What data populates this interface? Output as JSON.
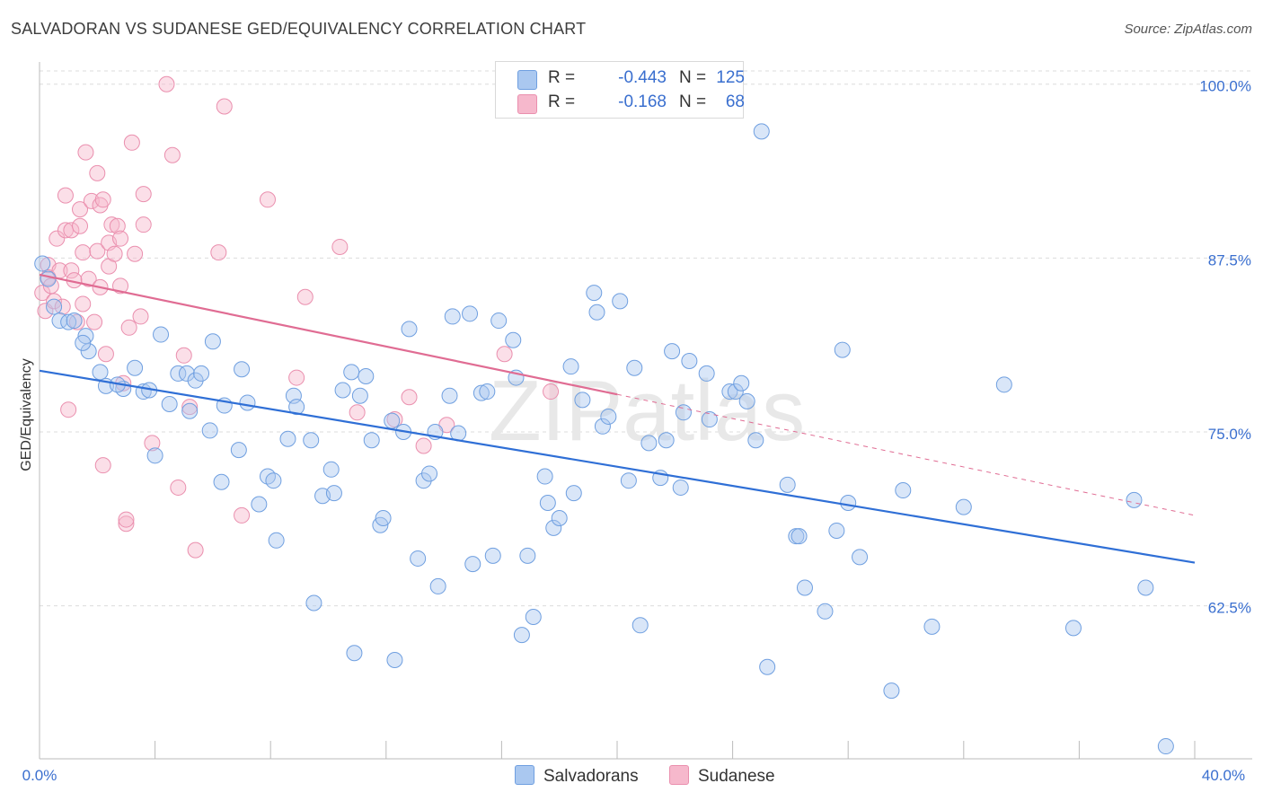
{
  "header": {
    "title": "SALVADORAN VS SUDANESE GED/EQUIVALENCY CORRELATION CHART",
    "source": "Source: ZipAtlas.com"
  },
  "legend": {
    "rows": [
      {
        "r_label": "R =",
        "r_value": "-0.443",
        "n_label": "N =",
        "n_value": "125",
        "color": "#a9c6f0"
      },
      {
        "r_label": "R =",
        "r_value": "-0.168",
        "n_label": "N =",
        "n_value": "68",
        "color": "#f5b3c8"
      }
    ],
    "bottom": [
      "Salvadorans",
      "Sudanese"
    ]
  },
  "colors": {
    "blue_fill": "#aac8f0",
    "blue_stroke": "#6f9fe0",
    "blue_line": "#2f6fd6",
    "pink_fill": "#f6b8cc",
    "pink_stroke": "#ea8fae",
    "pink_line": "#e06c93",
    "tick_text": "#3a6fcf"
  },
  "chart_data": {
    "type": "scatter",
    "title": "SALVADORAN VS SUDANESE GED/EQUIVALENCY CORRELATION CHART",
    "xlabel": "",
    "ylabel": "GED/Equivalency",
    "xlim": [
      0,
      40
    ],
    "ylim": [
      51.5,
      102.5
    ],
    "x_tick_labels": [
      "0.0%",
      "40.0%"
    ],
    "y_ticks": [
      62.5,
      75.0,
      87.5,
      100.0
    ],
    "y_tick_labels": [
      "62.5%",
      "75.0%",
      "87.5%",
      "100.0%"
    ],
    "grid": true,
    "legend_position": "top-center",
    "watermark": "ZIPatlas",
    "series": [
      {
        "name": "Salvadorans",
        "color": "#aac8f0",
        "trend": {
          "x": [
            0,
            40
          ],
          "y": [
            79.4,
            65.6
          ]
        },
        "points": [
          [
            0.1,
            87.1
          ],
          [
            0.3,
            86.0
          ],
          [
            0.5,
            84.0
          ],
          [
            0.7,
            83.0
          ],
          [
            1.0,
            82.9
          ],
          [
            1.2,
            83.0
          ],
          [
            1.6,
            81.9
          ],
          [
            1.7,
            80.8
          ],
          [
            1.5,
            81.4
          ],
          [
            2.1,
            79.3
          ],
          [
            2.3,
            78.3
          ],
          [
            2.9,
            78.1
          ],
          [
            2.7,
            78.4
          ],
          [
            3.3,
            79.6
          ],
          [
            3.6,
            77.9
          ],
          [
            3.8,
            78.0
          ],
          [
            4.0,
            73.3
          ],
          [
            4.2,
            82.0
          ],
          [
            4.5,
            77.0
          ],
          [
            4.8,
            79.2
          ],
          [
            5.1,
            79.2
          ],
          [
            5.2,
            76.5
          ],
          [
            5.4,
            78.7
          ],
          [
            5.6,
            79.2
          ],
          [
            5.9,
            75.1
          ],
          [
            6.0,
            81.5
          ],
          [
            6.3,
            71.4
          ],
          [
            6.4,
            76.9
          ],
          [
            6.9,
            73.7
          ],
          [
            7.0,
            79.5
          ],
          [
            7.2,
            77.1
          ],
          [
            7.6,
            69.8
          ],
          [
            7.9,
            71.8
          ],
          [
            8.1,
            71.5
          ],
          [
            8.2,
            67.2
          ],
          [
            8.6,
            74.5
          ],
          [
            8.8,
            77.6
          ],
          [
            8.9,
            76.8
          ],
          [
            9.4,
            74.4
          ],
          [
            9.5,
            62.7
          ],
          [
            9.8,
            70.4
          ],
          [
            10.1,
            72.3
          ],
          [
            10.2,
            70.6
          ],
          [
            10.5,
            78.0
          ],
          [
            10.8,
            79.3
          ],
          [
            10.9,
            59.1
          ],
          [
            11.1,
            77.6
          ],
          [
            11.3,
            79.0
          ],
          [
            11.5,
            74.4
          ],
          [
            11.8,
            68.3
          ],
          [
            11.9,
            68.8
          ],
          [
            12.2,
            75.8
          ],
          [
            12.3,
            58.6
          ],
          [
            12.6,
            75.0
          ],
          [
            12.8,
            82.4
          ],
          [
            13.1,
            65.9
          ],
          [
            13.3,
            71.5
          ],
          [
            13.5,
            72.0
          ],
          [
            13.7,
            75.0
          ],
          [
            13.8,
            63.9
          ],
          [
            14.2,
            77.6
          ],
          [
            14.3,
            83.3
          ],
          [
            14.5,
            74.9
          ],
          [
            14.9,
            83.5
          ],
          [
            15.0,
            65.5
          ],
          [
            15.3,
            77.8
          ],
          [
            15.5,
            77.9
          ],
          [
            15.7,
            66.1
          ],
          [
            15.9,
            83.0
          ],
          [
            16.4,
            81.6
          ],
          [
            16.5,
            78.9
          ],
          [
            16.7,
            60.4
          ],
          [
            16.9,
            66.1
          ],
          [
            17.1,
            61.7
          ],
          [
            17.5,
            71.8
          ],
          [
            17.6,
            69.9
          ],
          [
            17.8,
            68.1
          ],
          [
            18.0,
            68.8
          ],
          [
            18.4,
            79.7
          ],
          [
            18.5,
            70.6
          ],
          [
            18.8,
            77.3
          ],
          [
            19.2,
            85.0
          ],
          [
            19.3,
            83.6
          ],
          [
            19.5,
            75.4
          ],
          [
            19.7,
            76.1
          ],
          [
            20.1,
            84.4
          ],
          [
            20.4,
            71.5
          ],
          [
            20.6,
            79.6
          ],
          [
            20.8,
            61.1
          ],
          [
            21.1,
            74.2
          ],
          [
            21.5,
            71.7
          ],
          [
            21.7,
            74.4
          ],
          [
            21.9,
            80.8
          ],
          [
            22.2,
            71.0
          ],
          [
            22.3,
            76.4
          ],
          [
            22.5,
            80.1
          ],
          [
            23.1,
            79.2
          ],
          [
            23.2,
            75.9
          ],
          [
            23.9,
            77.9
          ],
          [
            24.1,
            77.9
          ],
          [
            24.3,
            78.5
          ],
          [
            24.5,
            77.2
          ],
          [
            24.8,
            74.4
          ],
          [
            25.0,
            96.6
          ],
          [
            25.2,
            58.1
          ],
          [
            25.9,
            71.2
          ],
          [
            26.2,
            67.5
          ],
          [
            26.3,
            67.5
          ],
          [
            26.5,
            63.8
          ],
          [
            27.2,
            62.1
          ],
          [
            27.6,
            67.9
          ],
          [
            27.8,
            80.9
          ],
          [
            28.0,
            69.9
          ],
          [
            28.4,
            66.0
          ],
          [
            29.5,
            56.4
          ],
          [
            29.9,
            70.8
          ],
          [
            30.9,
            61.0
          ],
          [
            32.0,
            69.6
          ],
          [
            33.4,
            78.4
          ],
          [
            35.8,
            60.9
          ],
          [
            37.9,
            70.1
          ],
          [
            38.3,
            63.8
          ],
          [
            39.0,
            52.4
          ]
        ]
      },
      {
        "name": "Sudanese",
        "color": "#f6b8cc",
        "trend": {
          "x": [
            0,
            20
          ],
          "y": [
            86.3,
            77.7
          ]
        },
        "trend_extension": {
          "x": [
            20,
            40
          ],
          "y": [
            77.7,
            69.0
          ]
        },
        "points": [
          [
            0.1,
            85.0
          ],
          [
            0.2,
            83.7
          ],
          [
            0.3,
            87.0
          ],
          [
            0.3,
            86.1
          ],
          [
            0.4,
            85.5
          ],
          [
            0.5,
            84.4
          ],
          [
            0.6,
            88.9
          ],
          [
            0.7,
            86.6
          ],
          [
            0.8,
            84.0
          ],
          [
            0.9,
            92.0
          ],
          [
            0.9,
            89.5
          ],
          [
            1.0,
            76.6
          ],
          [
            1.1,
            89.5
          ],
          [
            1.1,
            86.6
          ],
          [
            1.2,
            85.9
          ],
          [
            1.3,
            82.9
          ],
          [
            1.4,
            89.8
          ],
          [
            1.4,
            91.0
          ],
          [
            1.5,
            84.2
          ],
          [
            1.5,
            87.9
          ],
          [
            1.6,
            95.1
          ],
          [
            1.7,
            86.0
          ],
          [
            1.8,
            91.6
          ],
          [
            1.9,
            82.9
          ],
          [
            2.0,
            88.0
          ],
          [
            2.0,
            93.6
          ],
          [
            2.1,
            91.3
          ],
          [
            2.1,
            85.4
          ],
          [
            2.2,
            91.7
          ],
          [
            2.2,
            72.6
          ],
          [
            2.3,
            80.6
          ],
          [
            2.4,
            86.9
          ],
          [
            2.4,
            88.6
          ],
          [
            2.5,
            89.9
          ],
          [
            2.6,
            87.8
          ],
          [
            2.7,
            89.8
          ],
          [
            2.8,
            88.9
          ],
          [
            2.8,
            85.5
          ],
          [
            2.9,
            78.5
          ],
          [
            3.0,
            68.4
          ],
          [
            3.0,
            68.7
          ],
          [
            3.1,
            82.5
          ],
          [
            3.2,
            95.8
          ],
          [
            3.3,
            87.8
          ],
          [
            3.5,
            83.3
          ],
          [
            3.6,
            92.1
          ],
          [
            3.6,
            89.9
          ],
          [
            3.9,
            74.2
          ],
          [
            4.4,
            100.0
          ],
          [
            4.6,
            94.9
          ],
          [
            4.8,
            71.0
          ],
          [
            5.2,
            76.8
          ],
          [
            5.4,
            66.5
          ],
          [
            6.2,
            87.9
          ],
          [
            6.4,
            98.4
          ],
          [
            7.0,
            69.0
          ],
          [
            7.9,
            91.7
          ],
          [
            8.9,
            78.9
          ],
          [
            9.2,
            84.7
          ],
          [
            10.4,
            88.3
          ],
          [
            11.0,
            76.4
          ],
          [
            12.3,
            75.9
          ],
          [
            12.8,
            77.5
          ],
          [
            13.3,
            74.0
          ],
          [
            14.1,
            75.5
          ],
          [
            16.1,
            80.6
          ],
          [
            17.7,
            77.9
          ],
          [
            5.0,
            80.5
          ]
        ]
      }
    ]
  }
}
